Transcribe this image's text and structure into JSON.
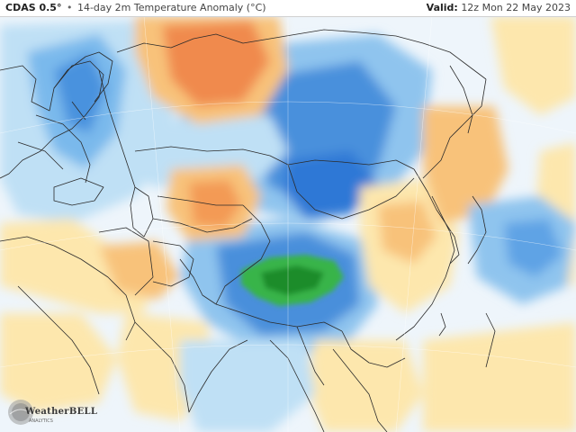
{
  "header": {
    "model": "CDAS 0.5°",
    "separator": "•",
    "product": "14-day 2m Temperature Anomaly (°C)",
    "valid_label": "Valid:",
    "valid_time": "12z Mon 22 May 2023"
  },
  "logo": {
    "text": "WeatherBELL",
    "subtitle": "ANALYTICS"
  },
  "colors": {
    "ocean": "#eef5fb",
    "land_neutral": "#f7f9fb",
    "cold_light": "#bfe0f5",
    "cold_mid": "#6fb3ea",
    "cold_strong": "#2f78d6",
    "cold_extreme": "#1b4fae",
    "very_cold": "#29a33a",
    "very_cold_core": "#1f8c2c",
    "warm_light": "#fde7ad",
    "warm_mid": "#f8c27a",
    "warm_strong": "#f39a55",
    "warm_extreme": "#e8643a",
    "border": "#2b2b2b"
  }
}
